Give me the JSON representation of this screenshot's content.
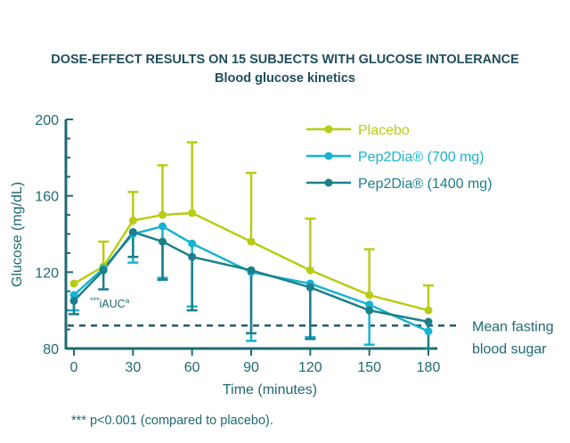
{
  "chart_data": {
    "type": "line",
    "title": "DOSE-EFFECT RESULTS ON 15 SUBJECTS WITH GLUCOSE INTOLERANCE",
    "subtitle": "Blood glucose kinetics",
    "xlabel": "Time (minutes)",
    "ylabel": "Glucose (mg/dL)",
    "x_ticks": [
      0,
      30,
      60,
      90,
      120,
      150,
      180
    ],
    "y_ticks": [
      80,
      120,
      160,
      200
    ],
    "xlim": [
      0,
      180
    ],
    "ylim": [
      80,
      200
    ],
    "x": [
      0,
      15,
      30,
      45,
      60,
      90,
      120,
      150,
      180
    ],
    "series": [
      {
        "name": "Placebo",
        "color": "#b8cc16",
        "values": [
          114,
          123,
          147,
          150,
          151,
          136,
          121,
          108,
          100
        ],
        "error_upper": [
          null,
          136,
          162,
          176,
          188,
          172,
          148,
          132,
          113
        ],
        "error_lower": [
          null,
          null,
          null,
          null,
          null,
          null,
          null,
          null,
          null
        ]
      },
      {
        "name": "Pep2Dia® (700 mg)",
        "color": "#16b4cf",
        "values": [
          108,
          122,
          140,
          144,
          135,
          120,
          114,
          103,
          89
        ],
        "error_upper": [
          null,
          null,
          null,
          null,
          null,
          null,
          null,
          null,
          null
        ],
        "error_lower": [
          100,
          null,
          125,
          117,
          102,
          84,
          86,
          82,
          null
        ]
      },
      {
        "name": "Pep2Dia® (1400 mg)",
        "color": "#1c7f8a",
        "values": [
          105,
          121,
          141,
          136,
          128,
          121,
          112,
          100,
          94
        ],
        "error_upper": [
          null,
          null,
          null,
          null,
          null,
          null,
          null,
          null,
          null
        ],
        "error_lower": [
          98,
          111,
          128,
          116,
          100,
          88,
          85,
          null,
          80
        ]
      }
    ],
    "reference_line": {
      "label_line1": "Mean fasting",
      "label_line2": "blood sugar",
      "value": 92
    },
    "annotation": {
      "stars": "***",
      "text": "iAUC",
      "superscript": "a"
    },
    "legend_position": "top-right",
    "grid": false
  },
  "footnote": "*** p<0.001 (compared to placebo).",
  "colors": {
    "axis": "#1f6a72",
    "title": "#1f4e5a",
    "reference": "#1f5f68"
  }
}
